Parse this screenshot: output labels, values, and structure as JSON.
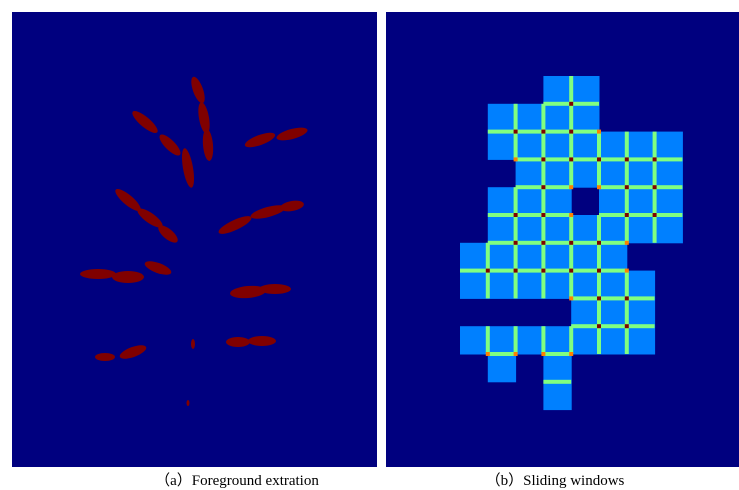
{
  "figure": {
    "captions": [
      "（a）Foreground extration",
      "（b）Sliding windows"
    ]
  }
}
